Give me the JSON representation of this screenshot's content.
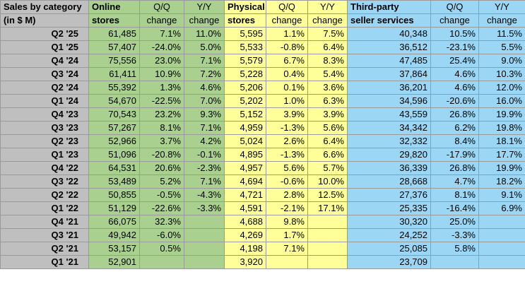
{
  "header": {
    "label_line1": "Sales by category",
    "label_line2": "(in $ M)",
    "online_line1": "Online",
    "online_line2": "stores",
    "physical_line1": "Physical",
    "physical_line2": "stores",
    "third_line1": "Third-party",
    "third_line2": "seller services",
    "qq_line1": "Q/Q",
    "qq_line2": "change",
    "yy_line1": "Y/Y",
    "yy_line2": "change"
  },
  "colors": {
    "label_bg": "#bfbfbf",
    "online_bg": "#a9d08e",
    "physical_bg": "#ffff99",
    "third_party_bg": "#9bd7f5"
  },
  "rows": [
    {
      "q": "Q2 '25",
      "o": "61,485",
      "oq": "7.1%",
      "oy": "11.0%",
      "p": "5,595",
      "pq": "1.1%",
      "py": "7.5%",
      "t": "40,348",
      "tq": "10.5%",
      "ty": "11.5%"
    },
    {
      "q": "Q1 '25",
      "o": "57,407",
      "oq": "-24.0%",
      "oy": "5.0%",
      "p": "5,533",
      "pq": "-0.8%",
      "py": "6.4%",
      "t": "36,512",
      "tq": "-23.1%",
      "ty": "5.5%"
    },
    {
      "q": "Q4 '24",
      "o": "75,556",
      "oq": "23.0%",
      "oy": "7.1%",
      "p": "5,579",
      "pq": "6.7%",
      "py": "8.3%",
      "t": "47,485",
      "tq": "25.4%",
      "ty": "9.0%"
    },
    {
      "q": "Q3 '24",
      "o": "61,411",
      "oq": "10.9%",
      "oy": "7.2%",
      "p": "5,228",
      "pq": "0.4%",
      "py": "5.4%",
      "t": "37,864",
      "tq": "4.6%",
      "ty": "10.3%"
    },
    {
      "q": "Q2 '24",
      "o": "55,392",
      "oq": "1.3%",
      "oy": "4.6%",
      "p": "5,206",
      "pq": "0.1%",
      "py": "3.6%",
      "t": "36,201",
      "tq": "4.6%",
      "ty": "12.0%"
    },
    {
      "q": "Q1 '24",
      "o": "54,670",
      "oq": "-22.5%",
      "oy": "7.0%",
      "p": "5,202",
      "pq": "1.0%",
      "py": "6.3%",
      "t": "34,596",
      "tq": "-20.6%",
      "ty": "16.0%"
    },
    {
      "q": "Q4 '23",
      "o": "70,543",
      "oq": "23.2%",
      "oy": "9.3%",
      "p": "5,152",
      "pq": "3.9%",
      "py": "3.9%",
      "t": "43,559",
      "tq": "26.8%",
      "ty": "19.9%"
    },
    {
      "q": "Q3 '23",
      "o": "57,267",
      "oq": "8.1%",
      "oy": "7.1%",
      "p": "4,959",
      "pq": "-1.3%",
      "py": "5.6%",
      "t": "34,342",
      "tq": "6.2%",
      "ty": "19.8%"
    },
    {
      "q": "Q2 '23",
      "o": "52,966",
      "oq": "3.7%",
      "oy": "4.2%",
      "p": "5,024",
      "pq": "2.6%",
      "py": "6.4%",
      "t": "32,332",
      "tq": "8.4%",
      "ty": "18.1%"
    },
    {
      "q": "Q1 '23",
      "o": "51,096",
      "oq": "-20.8%",
      "oy": "-0.1%",
      "p": "4,895",
      "pq": "-1.3%",
      "py": "6.6%",
      "t": "29,820",
      "tq": "-17.9%",
      "ty": "17.7%"
    },
    {
      "q": "Q4 '22",
      "o": "64,531",
      "oq": "20.6%",
      "oy": "-2.3%",
      "p": "4,957",
      "pq": "5.6%",
      "py": "5.7%",
      "t": "36,339",
      "tq": "26.8%",
      "ty": "19.9%"
    },
    {
      "q": "Q3 '22",
      "o": "53,489",
      "oq": "5.2%",
      "oy": "7.1%",
      "p": "4,694",
      "pq": "-0.6%",
      "py": "10.0%",
      "t": "28,668",
      "tq": "4.7%",
      "ty": "18.2%"
    },
    {
      "q": "Q2 '22",
      "o": "50,855",
      "oq": "-0.5%",
      "oy": "-4.3%",
      "p": "4,721",
      "pq": "2.8%",
      "py": "12.5%",
      "t": "27,376",
      "tq": "8.1%",
      "ty": "9.1%"
    },
    {
      "q": "Q1 '22",
      "o": "51,129",
      "oq": "-22.6%",
      "oy": "-3.3%",
      "p": "4,591",
      "pq": "-2.1%",
      "py": "17.1%",
      "t": "25,335",
      "tq": "-16.4%",
      "ty": "6.9%"
    },
    {
      "q": "Q4 '21",
      "o": "66,075",
      "oq": "32.3%",
      "oy": "",
      "p": "4,688",
      "pq": "9.8%",
      "py": "",
      "t": "30,320",
      "tq": "25.0%",
      "ty": ""
    },
    {
      "q": "Q3 '21",
      "o": "49,942",
      "oq": "-6.0%",
      "oy": "",
      "p": "4,269",
      "pq": "1.7%",
      "py": "",
      "t": "24,252",
      "tq": "-3.3%",
      "ty": ""
    },
    {
      "q": "Q2 '21",
      "o": "53,157",
      "oq": "0.5%",
      "oy": "",
      "p": "4,198",
      "pq": "7.1%",
      "py": "",
      "t": "25,085",
      "tq": "5.8%",
      "ty": ""
    },
    {
      "q": "Q1 '21",
      "o": "52,901",
      "oq": "",
      "oy": "",
      "p": "3,920",
      "pq": "",
      "py": "",
      "t": "23,709",
      "tq": "",
      "ty": ""
    }
  ]
}
